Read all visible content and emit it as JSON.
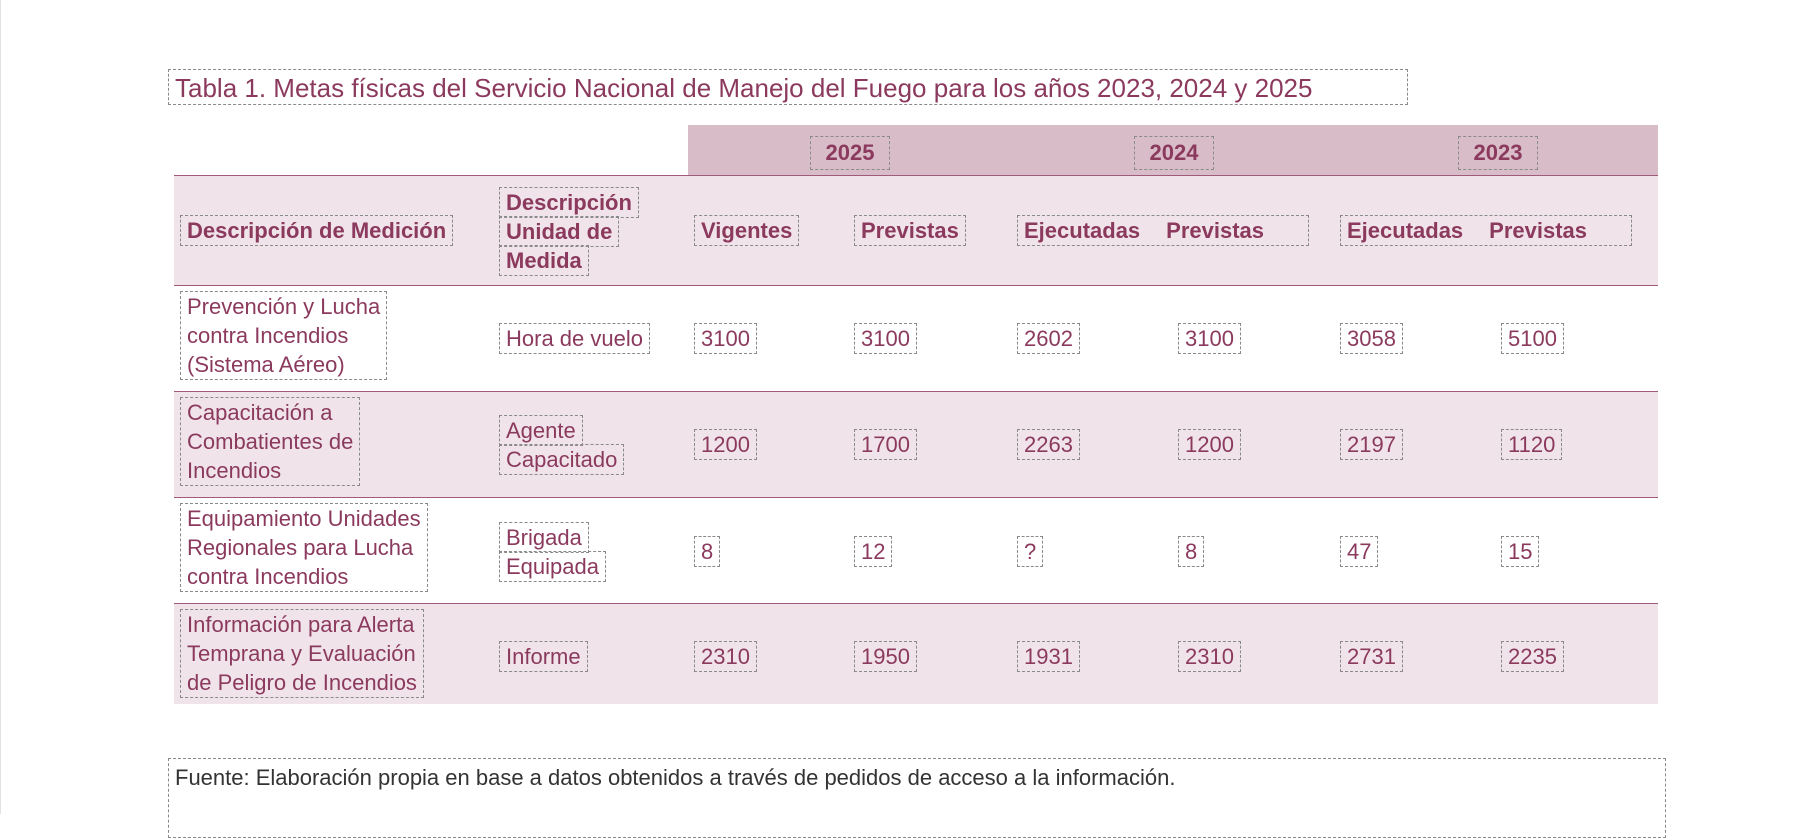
{
  "title": "Tabla 1. Metas físicas del Servicio Nacional de Manejo del Fuego para los años 2023, 2024 y 2025",
  "years": [
    "2025",
    "2024",
    "2023"
  ],
  "headers": {
    "medicion": "Descripción de Medición",
    "unidad": [
      "Descripción",
      "Unidad de",
      "Medida"
    ],
    "y2025": [
      "Vigentes",
      "Previstas"
    ],
    "y2024": [
      "Ejecutadas",
      "Previstas"
    ],
    "y2023": [
      "Ejecutadas",
      "Previstas"
    ]
  },
  "rows": [
    {
      "medicion": [
        "Prevención y Lucha",
        "contra Incendios",
        "(Sistema Aéreo)"
      ],
      "unidad": [
        "Hora de vuelo"
      ],
      "values": [
        "3100",
        "3100",
        "2602",
        "3100",
        "3058",
        "5100"
      ]
    },
    {
      "medicion": [
        "Capacitación a",
        "Combatientes de",
        "Incendios"
      ],
      "unidad": [
        "Agente",
        "Capacitado"
      ],
      "values": [
        "1200",
        "1700",
        "2263",
        "1200",
        "2197",
        "1120"
      ]
    },
    {
      "medicion": [
        "Equipamiento Unidades",
        "Regionales para Lucha",
        "contra Incendios"
      ],
      "unidad": [
        "Brigada",
        "Equipada"
      ],
      "values": [
        "8",
        "12",
        "?",
        "8",
        "47",
        "15"
      ]
    },
    {
      "medicion": [
        "Información para Alerta",
        "Temprana y Evaluación",
        "de Peligro de Incendios"
      ],
      "unidad": [
        "Informe"
      ],
      "values": [
        "2310",
        "1950",
        "1931",
        "2310",
        "2731",
        "2235"
      ]
    }
  ],
  "footer": "Fuente: Elaboración propia en base a datos obtenidos a través de pedidos de acceso a la información."
}
